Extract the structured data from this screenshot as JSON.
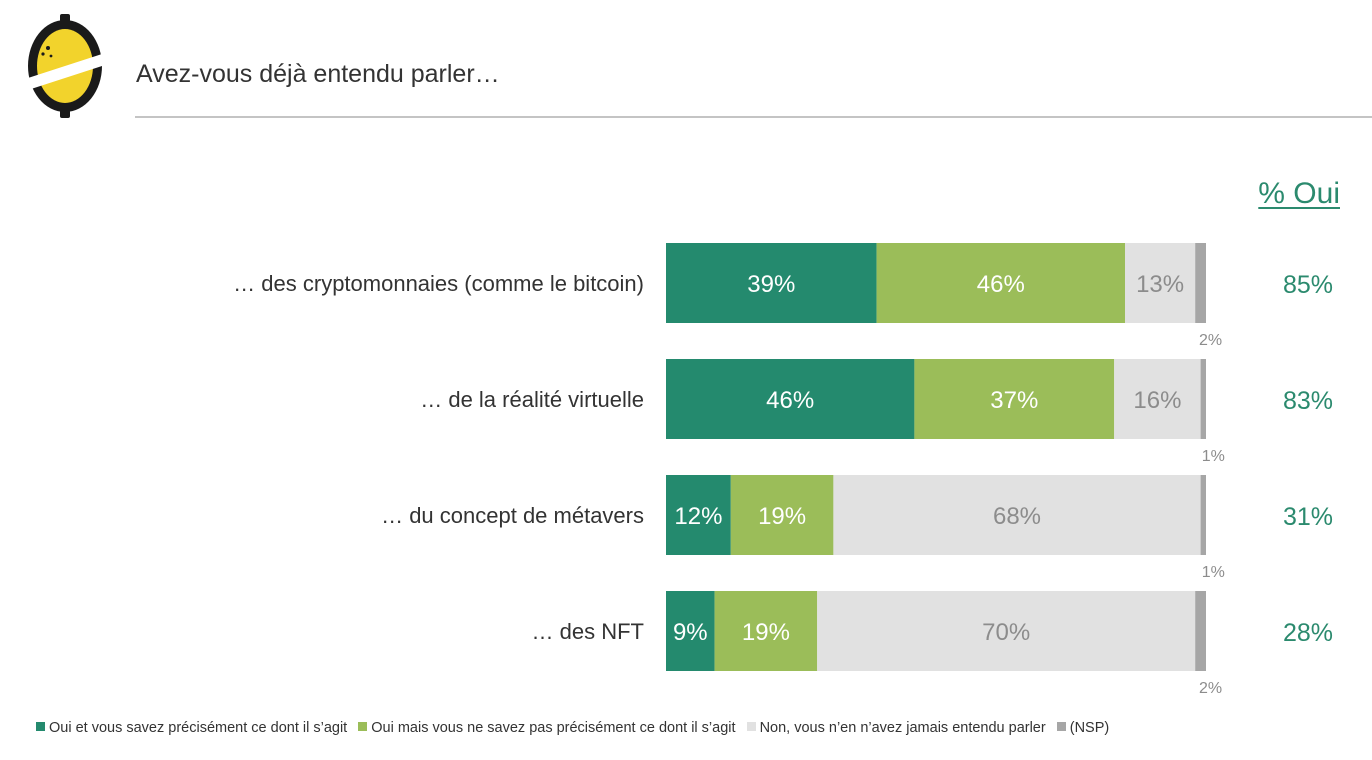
{
  "header": {
    "title": "Avez-vous déjà entendu parler…",
    "logo_icon": "lemon-logo-icon"
  },
  "chart_data": {
    "type": "bar",
    "orientation": "horizontal",
    "stacked": true,
    "title": "Avez-vous déjà entendu parler…",
    "categories": [
      "… des cryptomonnaies (comme le bitcoin)",
      "… de la réalité virtuelle",
      "… du concept de métavers",
      "… des NFT"
    ],
    "series": [
      {
        "name": "Oui et vous savez précisément ce dont il s’agit",
        "color": "#248a6e",
        "label_color": "#ffffff",
        "values": [
          39,
          46,
          12,
          9
        ]
      },
      {
        "name": "Oui mais vous ne savez pas précisément ce dont il s’agit",
        "color": "#9bbd59",
        "label_color": "#ffffff",
        "values": [
          46,
          37,
          19,
          19
        ]
      },
      {
        "name": "Non, vous n’en n’avez jamais entendu parler",
        "color": "#e1e1e1",
        "label_color": "#8c8c8c",
        "values": [
          13,
          16,
          68,
          70
        ]
      },
      {
        "name": "(NSP)",
        "color": "#a6a6a6",
        "label_color": "#8c8c8c",
        "values": [
          2,
          1,
          1,
          2
        ]
      }
    ],
    "value_suffix": "%",
    "total_yes_header": "% Oui",
    "total_yes": [
      "85%",
      "83%",
      "31%",
      "28%"
    ],
    "total_yes_color": "#2b8a6e",
    "xlim": [
      0,
      100
    ],
    "grid": false,
    "legend_position": "bottom"
  }
}
